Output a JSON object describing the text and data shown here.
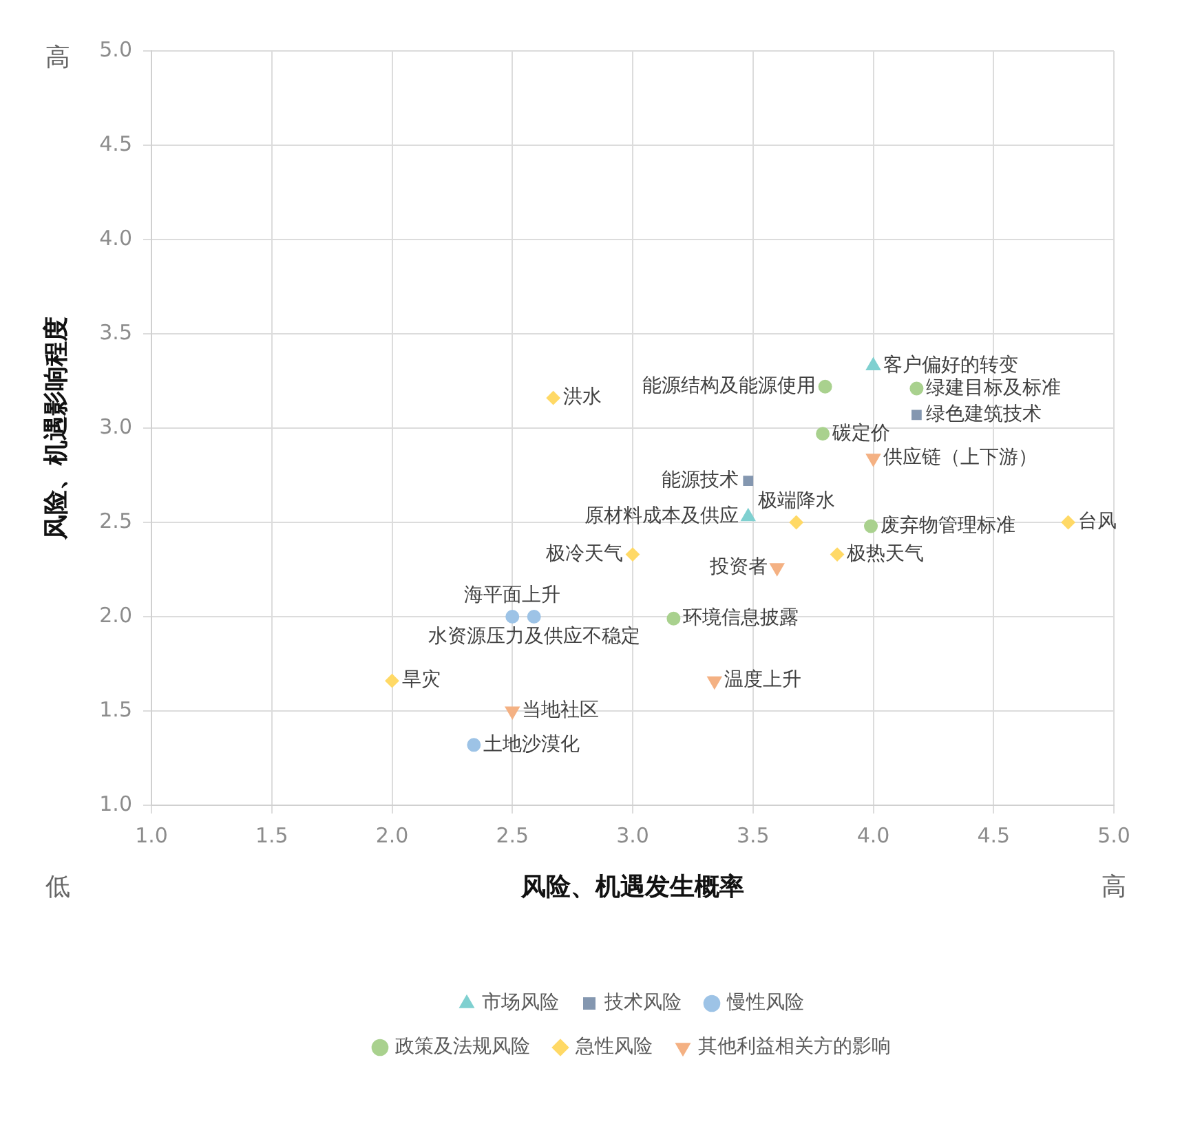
{
  "chart_data": {
    "type": "scatter",
    "xlabel": "风险、机遇发生概率",
    "ylabel": "风险、机遇影响程度",
    "series": [
      {
        "name": "市场风险",
        "color": "#7fd0d0",
        "marker": "triangle",
        "x": [
          4.0,
          3.48
        ],
        "values": [
          3.33,
          2.53
        ]
      },
      {
        "name": "技术风险",
        "color": "#8497b0",
        "marker": "square",
        "x": [
          4.18,
          3.48
        ],
        "values": [
          3.07,
          2.72
        ]
      },
      {
        "name": "慢性风险",
        "color": "#9dc3e6",
        "marker": "circle",
        "x": [
          2.5,
          2.59,
          2.34
        ],
        "values": [
          2.0,
          2.0,
          1.32
        ]
      },
      {
        "name": "政策及法规风险",
        "color": "#a9d18e",
        "marker": "circle",
        "x": [
          3.8,
          4.18,
          3.79,
          3.99,
          3.17
        ],
        "values": [
          3.22,
          3.21,
          2.97,
          2.48,
          1.99
        ]
      },
      {
        "name": "急性风险",
        "color": "#ffd966",
        "marker": "diamond",
        "x": [
          2.67,
          3.68,
          4.81,
          3.85,
          3.0,
          2.0
        ],
        "values": [
          3.16,
          2.5,
          2.5,
          2.33,
          2.33,
          1.66
        ]
      },
      {
        "name": "其他利益相关方的影响",
        "color": "#f4b183",
        "marker": "triangle-down",
        "x": [
          4.0,
          3.6,
          3.34,
          2.5
        ],
        "values": [
          2.84,
          2.26,
          1.66,
          1.5
        ]
      }
    ],
    "xlim": [
      1,
      5
    ],
    "ylim": [
      1,
      5
    ],
    "xticks": [
      {
        "value": 1,
        "label": "1.0"
      },
      1.5,
      {
        "value": 2,
        "label": "2.0"
      },
      2.5,
      {
        "value": 3,
        "label": "3.0"
      },
      3.5,
      {
        "value": 4,
        "label": "4.0"
      },
      4.5,
      {
        "value": 5,
        "label": "5.0"
      }
    ],
    "yticks": [
      {
        "value": 1,
        "label": "1.0"
      },
      1.5,
      {
        "value": 2,
        "label": "2.0"
      },
      2.5,
      {
        "value": 3,
        "label": "3.0"
      },
      3.5,
      {
        "value": 4,
        "label": "4.0"
      },
      4.5,
      {
        "value": 5,
        "label": "5.0"
      }
    ],
    "grid": true,
    "legend": "bottom",
    "annotations": [
      "高",
      "低",
      "高",
      {
        "text": "极端降水",
        "x": 3.68,
        "y": 2.5
      },
      {
        "text": "原材料成本及供应",
        "x": 3.48,
        "y": 2.53
      },
      {
        "text": "能源技术",
        "x": 3.48,
        "y": 2.72
      },
      {
        "text": "客户偏好的转变",
        "x": 4.0,
        "y": 3.33
      },
      {
        "text": "绿色建筑技术",
        "x": 4.18,
        "y": 3.07
      },
      {
        "text": "绿建目标及标准",
        "x": 4.18,
        "y": 3.21
      },
      {
        "text": "能源结构及能源使用",
        "x": 3.8,
        "y": 3.22
      },
      {
        "text": "碳定价",
        "x": 3.79,
        "y": 2.97
      },
      {
        "text": "供应链（上下游）",
        "x": 4.0,
        "y": 2.84
      },
      {
        "text": "废弃物管理标准",
        "x": 3.99,
        "y": 2.48
      },
      {
        "text": "台风",
        "x": 4.81,
        "y": 2.5
      },
      {
        "text": "极热天气",
        "x": 3.85,
        "y": 2.33
      },
      {
        "text": "投资者",
        "x": 3.6,
        "y": 2.26
      },
      {
        "text": "极冷天气",
        "x": 3.0,
        "y": 2.33
      },
      {
        "text": "洪水",
        "x": 2.67,
        "y": 3.16
      },
      {
        "text": "环境信息披露",
        "x": 3.17,
        "y": 1.99
      },
      {
        "text": "水资源压力及供应不稳定",
        "x": 2.59,
        "y": 2.0
      },
      {
        "text": "海平面上升",
        "x": 2.5,
        "y": 2.0
      },
      {
        "text": "旱灾",
        "x": 2.0,
        "y": 1.66
      },
      {
        "text": "温度上升",
        "x": 3.34,
        "y": 1.66
      },
      {
        "text": "当地社区",
        "x": 2.5,
        "y": 1.5
      },
      {
        "text": "土地沙漠化",
        "x": 2.34,
        "y": 1.32
      }
    ]
  }
}
